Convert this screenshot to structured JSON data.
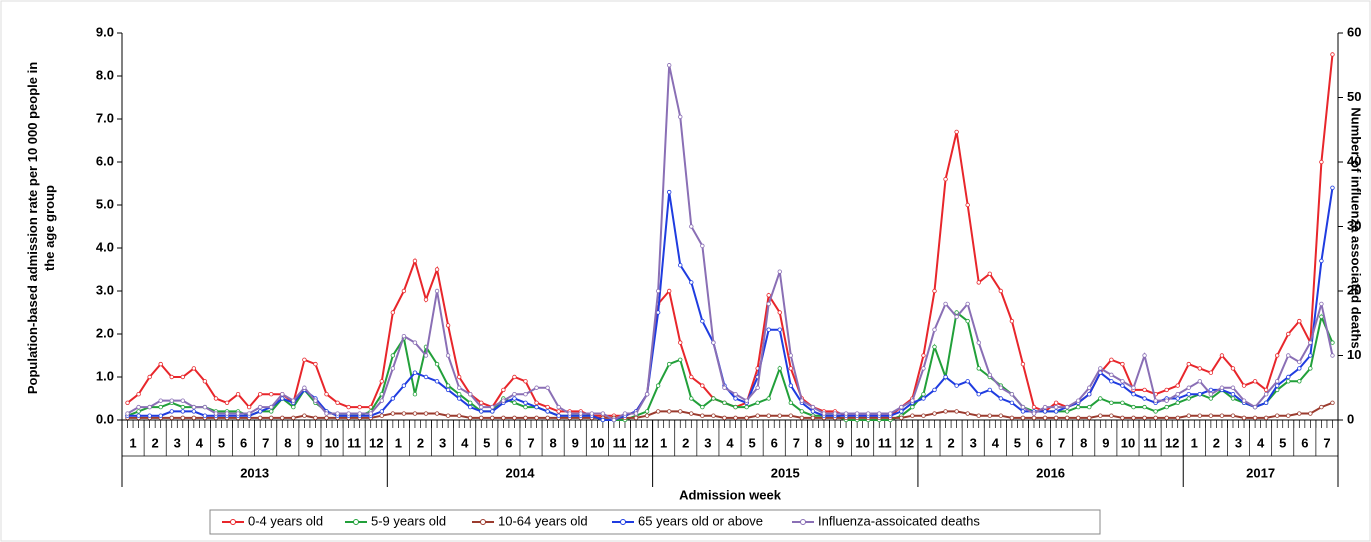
{
  "chart_data": {
    "type": "line",
    "y_label": "Population-based admission rate per 10 000 people in the age group",
    "y2_label": "Number of influenza associated deaths",
    "x_label": "Admission week",
    "categories": [
      "1",
      "2",
      "3",
      "4",
      "5",
      "6",
      "7",
      "8",
      "9",
      "10",
      "11",
      "12",
      "1",
      "2",
      "3",
      "4",
      "5",
      "6",
      "7",
      "8",
      "9",
      "10",
      "11",
      "12",
      "1",
      "2",
      "3",
      "4",
      "5",
      "6",
      "7",
      "8",
      "9",
      "10",
      "11",
      "12",
      "1",
      "2",
      "3",
      "4",
      "5",
      "6",
      "7",
      "8",
      "9",
      "10",
      "11",
      "12",
      "1",
      "2",
      "3",
      "4",
      "5",
      "6",
      "7"
    ],
    "groups": [
      "2013",
      "2014",
      "2015",
      "2016",
      "2017"
    ],
    "ylim": [
      0,
      9
    ],
    "yticks": [
      {
        "value": 0,
        "label": "0.0"
      },
      {
        "value": 1,
        "label": "1.0"
      },
      {
        "value": 2,
        "label": "2.0"
      },
      {
        "value": 3,
        "label": "3.0"
      },
      {
        "value": 4,
        "label": "4.0"
      },
      {
        "value": 5,
        "label": "5.0"
      },
      {
        "value": 6,
        "label": "6.0"
      },
      {
        "value": 7,
        "label": "7.0"
      },
      {
        "value": 8,
        "label": "8.0"
      },
      {
        "value": 9,
        "label": "9.0"
      }
    ],
    "y2lim": [
      0,
      60
    ],
    "y2ticks": [
      0,
      10,
      20,
      30,
      40,
      50,
      60
    ],
    "series": [
      {
        "name": "0-4 years old",
        "color": "#e8262b",
        "values": [
          [
            0.4,
            0.6
          ],
          [
            1.0,
            1.3
          ],
          [
            1.0,
            1.0
          ],
          [
            1.2,
            0.9
          ],
          [
            0.5,
            0.4
          ],
          [
            0.6,
            0.3
          ],
          [
            0.6,
            0.6
          ],
          [
            0.6,
            0.4
          ],
          [
            1.4,
            1.3
          ],
          [
            0.6,
            0.4
          ],
          [
            0.3,
            0.3
          ],
          [
            0.3,
            0.9
          ],
          [
            2.5,
            3.0
          ],
          [
            3.7,
            2.8
          ],
          [
            3.5,
            2.2
          ],
          [
            1.0,
            0.6
          ],
          [
            0.4,
            0.3
          ],
          [
            0.7,
            1.0
          ],
          [
            0.9,
            0.4
          ],
          [
            0.3,
            0.2
          ],
          [
            0.2,
            0.2
          ],
          [
            0.1,
            0.1
          ],
          [
            0.1,
            0.1
          ],
          [
            0.2,
            0.6
          ],
          [
            2.7,
            3.0
          ],
          [
            1.8,
            1.0
          ],
          [
            0.8,
            0.5
          ],
          [
            0.4,
            0.3
          ],
          [
            0.4,
            1.2
          ],
          [
            2.9,
            2.5
          ],
          [
            1.2,
            0.5
          ],
          [
            0.3,
            0.2
          ],
          [
            0.2,
            0.1
          ],
          [
            0.1,
            0.1
          ],
          [
            0.1,
            0.1
          ],
          [
            0.3,
            0.5
          ],
          [
            1.5,
            3.0
          ],
          [
            5.6,
            6.7
          ],
          [
            5.0,
            3.2
          ],
          [
            3.4,
            3.0
          ],
          [
            2.3,
            1.3
          ],
          [
            0.3,
            0.2
          ],
          [
            0.4,
            0.3
          ],
          [
            0.4,
            0.6
          ],
          [
            1.1,
            1.4
          ],
          [
            1.3,
            0.7
          ],
          [
            0.7,
            0.6
          ],
          [
            0.7,
            0.8
          ],
          [
            1.3,
            1.2
          ],
          [
            1.1,
            1.5
          ],
          [
            1.2,
            0.8
          ],
          [
            0.9,
            0.7
          ],
          [
            1.5,
            2.0
          ],
          [
            2.3,
            1.8
          ],
          [
            6.0,
            8.5
          ]
        ]
      },
      {
        "name": "5-9 years old",
        "color": "#22a03a",
        "values": [
          [
            0.1,
            0.2
          ],
          [
            0.3,
            0.3
          ],
          [
            0.4,
            0.3
          ],
          [
            0.3,
            0.3
          ],
          [
            0.2,
            0.2
          ],
          [
            0.2,
            0.1
          ],
          [
            0.2,
            0.2
          ],
          [
            0.5,
            0.3
          ],
          [
            0.7,
            0.4
          ],
          [
            0.2,
            0.1
          ],
          [
            0.1,
            0.1
          ],
          [
            0.2,
            0.6
          ],
          [
            1.5,
            1.9
          ],
          [
            0.6,
            1.7
          ],
          [
            1.3,
            0.8
          ],
          [
            0.6,
            0.4
          ],
          [
            0.2,
            0.2
          ],
          [
            0.5,
            0.4
          ],
          [
            0.3,
            0.3
          ],
          [
            0.2,
            0.1
          ],
          [
            0.1,
            0.1
          ],
          [
            0.1,
            0
          ],
          [
            0,
            0
          ],
          [
            0.1,
            0.2
          ],
          [
            0.8,
            1.3
          ],
          [
            1.4,
            0.5
          ],
          [
            0.3,
            0.5
          ],
          [
            0.4,
            0.3
          ],
          [
            0.3,
            0.4
          ],
          [
            0.5,
            1.2
          ],
          [
            0.4,
            0.2
          ],
          [
            0.1,
            0.1
          ],
          [
            0.1,
            0
          ],
          [
            0,
            0
          ],
          [
            0,
            0
          ],
          [
            0.1,
            0.3
          ],
          [
            0.6,
            1.7
          ],
          [
            1.0,
            2.5
          ],
          [
            2.3,
            1.2
          ],
          [
            1.0,
            0.8
          ],
          [
            0.6,
            0.3
          ],
          [
            0.2,
            0.2
          ],
          [
            0.2,
            0.2
          ],
          [
            0.3,
            0.3
          ],
          [
            0.5,
            0.4
          ],
          [
            0.4,
            0.3
          ],
          [
            0.3,
            0.2
          ],
          [
            0.3,
            0.4
          ],
          [
            0.5,
            0.6
          ],
          [
            0.5,
            0.7
          ],
          [
            0.5,
            0.4
          ],
          [
            0.3,
            0.4
          ],
          [
            0.7,
            0.9
          ],
          [
            0.9,
            1.2
          ],
          [
            2.4,
            1.8
          ]
        ]
      },
      {
        "name": "10-64 years old",
        "color": "#9b3b2e",
        "values": [
          [
            0.05,
            0.05
          ],
          [
            0.05,
            0.05
          ],
          [
            0.05,
            0.05
          ],
          [
            0.05,
            0.05
          ],
          [
            0.05,
            0.05
          ],
          [
            0.05,
            0.05
          ],
          [
            0.05,
            0.05
          ],
          [
            0.05,
            0.05
          ],
          [
            0.1,
            0.05
          ],
          [
            0.05,
            0.05
          ],
          [
            0.05,
            0.05
          ],
          [
            0.05,
            0.1
          ],
          [
            0.15,
            0.15
          ],
          [
            0.15,
            0.15
          ],
          [
            0.15,
            0.1
          ],
          [
            0.1,
            0.05
          ],
          [
            0.05,
            0.05
          ],
          [
            0.05,
            0.05
          ],
          [
            0.05,
            0.05
          ],
          [
            0.05,
            0.05
          ],
          [
            0.05,
            0.05
          ],
          [
            0.05,
            0.05
          ],
          [
            0.05,
            0.05
          ],
          [
            0.05,
            0.1
          ],
          [
            0.2,
            0.2
          ],
          [
            0.2,
            0.15
          ],
          [
            0.1,
            0.1
          ],
          [
            0.05,
            0.05
          ],
          [
            0.05,
            0.1
          ],
          [
            0.1,
            0.1
          ],
          [
            0.1,
            0.05
          ],
          [
            0.05,
            0.05
          ],
          [
            0.05,
            0.05
          ],
          [
            0.05,
            0.05
          ],
          [
            0.05,
            0.05
          ],
          [
            0.05,
            0.1
          ],
          [
            0.1,
            0.15
          ],
          [
            0.2,
            0.2
          ],
          [
            0.15,
            0.1
          ],
          [
            0.1,
            0.1
          ],
          [
            0.05,
            0.05
          ],
          [
            0.05,
            0.05
          ],
          [
            0.05,
            0.05
          ],
          [
            0.05,
            0.05
          ],
          [
            0.1,
            0.1
          ],
          [
            0.05,
            0.05
          ],
          [
            0.05,
            0.05
          ],
          [
            0.05,
            0.05
          ],
          [
            0.1,
            0.1
          ],
          [
            0.1,
            0.1
          ],
          [
            0.1,
            0.05
          ],
          [
            0.05,
            0.05
          ],
          [
            0.1,
            0.1
          ],
          [
            0.15,
            0.15
          ],
          [
            0.3,
            0.4
          ]
        ]
      },
      {
        "name": "65 years old or above",
        "color": "#1f3ce0",
        "values": [
          [
            0.1,
            0.1
          ],
          [
            0.1,
            0.1
          ],
          [
            0.2,
            0.2
          ],
          [
            0.2,
            0.1
          ],
          [
            0.1,
            0.1
          ],
          [
            0.1,
            0.1
          ],
          [
            0.2,
            0.3
          ],
          [
            0.5,
            0.4
          ],
          [
            0.7,
            0.5
          ],
          [
            0.2,
            0.1
          ],
          [
            0.1,
            0.1
          ],
          [
            0.1,
            0.2
          ],
          [
            0.5,
            0.8
          ],
          [
            1.1,
            1.0
          ],
          [
            0.9,
            0.7
          ],
          [
            0.5,
            0.3
          ],
          [
            0.2,
            0.2
          ],
          [
            0.4,
            0.5
          ],
          [
            0.4,
            0.3
          ],
          [
            0.2,
            0.1
          ],
          [
            0.1,
            0.1
          ],
          [
            0.1,
            0
          ],
          [
            0,
            0.1
          ],
          [
            0.2,
            0.6
          ],
          [
            2.5,
            5.3
          ],
          [
            3.6,
            3.2
          ],
          [
            2.3,
            1.8
          ],
          [
            0.8,
            0.5
          ],
          [
            0.4,
            1.0
          ],
          [
            2.1,
            2.1
          ],
          [
            0.8,
            0.4
          ],
          [
            0.2,
            0.1
          ],
          [
            0.1,
            0.1
          ],
          [
            0.1,
            0.1
          ],
          [
            0.1,
            0.1
          ],
          [
            0.2,
            0.4
          ],
          [
            0.5,
            0.7
          ],
          [
            1.0,
            0.8
          ],
          [
            0.9,
            0.6
          ],
          [
            0.7,
            0.5
          ],
          [
            0.4,
            0.2
          ],
          [
            0.2,
            0.2
          ],
          [
            0.2,
            0.3
          ],
          [
            0.4,
            0.6
          ],
          [
            1.1,
            0.9
          ],
          [
            0.8,
            0.6
          ],
          [
            0.5,
            0.4
          ],
          [
            0.5,
            0.5
          ],
          [
            0.6,
            0.6
          ],
          [
            0.7,
            0.7
          ],
          [
            0.6,
            0.4
          ],
          [
            0.3,
            0.4
          ],
          [
            0.8,
            1.0
          ],
          [
            1.2,
            1.5
          ],
          [
            3.7,
            5.4
          ]
        ]
      },
      {
        "name": "Influenza-assoicated deaths",
        "color": "#8a6fb5",
        "axis": "y2",
        "values": [
          [
            1,
            2
          ],
          [
            2,
            3
          ],
          [
            3,
            3
          ],
          [
            2,
            2
          ],
          [
            1,
            1
          ],
          [
            1,
            1
          ],
          [
            2,
            2
          ],
          [
            4,
            3
          ],
          [
            5,
            3
          ],
          [
            1,
            1
          ],
          [
            1,
            1
          ],
          [
            1,
            3
          ],
          [
            8,
            13
          ],
          [
            12,
            10
          ],
          [
            20,
            10
          ],
          [
            5,
            4
          ],
          [
            2,
            2
          ],
          [
            3,
            4
          ],
          [
            4,
            5
          ],
          [
            5,
            2
          ],
          [
            1,
            1
          ],
          [
            1,
            1
          ],
          [
            0,
            1
          ],
          [
            1,
            4
          ],
          [
            20,
            55
          ],
          [
            47,
            30
          ],
          [
            27,
            12
          ],
          [
            5,
            4
          ],
          [
            3,
            5
          ],
          [
            18,
            23
          ],
          [
            10,
            3
          ],
          [
            2,
            1
          ],
          [
            1,
            1
          ],
          [
            1,
            1
          ],
          [
            1,
            1
          ],
          [
            2,
            3
          ],
          [
            8,
            14
          ],
          [
            18,
            16
          ],
          [
            18,
            12
          ],
          [
            7,
            5
          ],
          [
            4,
            2
          ],
          [
            1,
            2
          ],
          [
            2,
            2
          ],
          [
            3,
            5
          ],
          [
            8,
            7
          ],
          [
            6,
            5
          ],
          [
            10,
            3
          ],
          [
            3,
            4
          ],
          [
            5,
            6
          ],
          [
            4,
            5
          ],
          [
            5,
            3
          ],
          [
            2,
            4
          ],
          [
            6,
            10
          ],
          [
            9,
            12
          ],
          [
            18,
            10
          ]
        ]
      }
    ]
  }
}
